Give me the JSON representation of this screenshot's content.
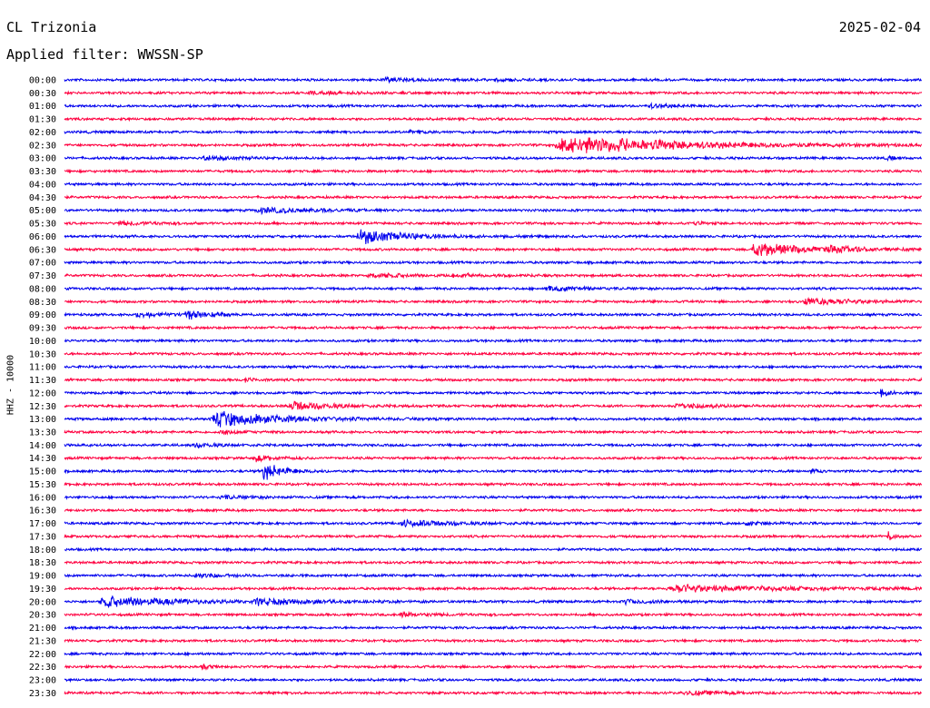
{
  "header": {
    "station": "CL Trizonia",
    "date": "2025-02-04",
    "filter_text": "Applied filter: WWSSN-SP"
  },
  "channel_label": "HHZ - 10000",
  "colors": {
    "blue": "#0000ee",
    "red": "#ff0040"
  },
  "time_labels": [
    "00:00",
    "00:30",
    "01:00",
    "01:30",
    "02:00",
    "02:30",
    "03:00",
    "03:30",
    "04:00",
    "04:30",
    "05:00",
    "05:30",
    "06:00",
    "06:30",
    "07:00",
    "07:30",
    "08:00",
    "08:30",
    "09:00",
    "09:30",
    "10:00",
    "10:30",
    "11:00",
    "11:30",
    "12:00",
    "12:30",
    "13:00",
    "13:30",
    "14:00",
    "14:30",
    "15:00",
    "15:30",
    "16:00",
    "16:30",
    "17:00",
    "17:30",
    "18:00",
    "18:30",
    "19:00",
    "19:30",
    "20:00",
    "20:30",
    "21:00",
    "21:30",
    "22:00",
    "22:30",
    "23:00",
    "23:30"
  ],
  "events": [
    {
      "line": 0,
      "start": 0.37,
      "amp": 0.45,
      "dur": 0.05
    },
    {
      "line": 0,
      "start": 0.5,
      "amp": 0.35,
      "dur": 0.04
    },
    {
      "line": 1,
      "start": 0.28,
      "amp": 0.35,
      "dur": 0.06
    },
    {
      "line": 2,
      "start": 0.68,
      "amp": 0.45,
      "dur": 0.05
    },
    {
      "line": 4,
      "start": 0.4,
      "amp": 0.25,
      "dur": 0.04
    },
    {
      "line": 5,
      "start": 0.57,
      "amp": 2.4,
      "dur": 0.18
    },
    {
      "line": 6,
      "start": 0.16,
      "amp": 0.55,
      "dur": 0.05
    },
    {
      "line": 6,
      "start": 0.96,
      "amp": 0.6,
      "dur": 0.01
    },
    {
      "line": 10,
      "start": 0.22,
      "amp": 0.6,
      "dur": 0.1
    },
    {
      "line": 11,
      "start": 0.06,
      "amp": 0.45,
      "dur": 0.06
    },
    {
      "line": 11,
      "start": 0.73,
      "amp": 0.35,
      "dur": 0.02
    },
    {
      "line": 12,
      "start": 0.34,
      "amp": 1.9,
      "dur": 0.07
    },
    {
      "line": 13,
      "start": 0.8,
      "amp": 1.9,
      "dur": 0.07
    },
    {
      "line": 13,
      "start": 0.89,
      "amp": 0.7,
      "dur": 0.06
    },
    {
      "line": 15,
      "start": 0.35,
      "amp": 0.7,
      "dur": 0.05
    },
    {
      "line": 15,
      "start": 0.45,
      "amp": 0.4,
      "dur": 0.05
    },
    {
      "line": 16,
      "start": 0.56,
      "amp": 0.6,
      "dur": 0.06
    },
    {
      "line": 17,
      "start": 0.86,
      "amp": 0.9,
      "dur": 0.08
    },
    {
      "line": 18,
      "start": 0.08,
      "amp": 0.5,
      "dur": 0.06
    },
    {
      "line": 18,
      "start": 0.14,
      "amp": 1.0,
      "dur": 0.03
    },
    {
      "line": 23,
      "start": 0.21,
      "amp": 0.7,
      "dur": 0.01
    },
    {
      "line": 24,
      "start": 0.95,
      "amp": 0.8,
      "dur": 0.02
    },
    {
      "line": 25,
      "start": 0.26,
      "amp": 1.2,
      "dur": 0.06
    },
    {
      "line": 25,
      "start": 0.71,
      "amp": 0.8,
      "dur": 0.05
    },
    {
      "line": 26,
      "start": 0.17,
      "amp": 2.0,
      "dur": 0.1
    },
    {
      "line": 27,
      "start": 0.18,
      "amp": 0.5,
      "dur": 0.03
    },
    {
      "line": 28,
      "start": 0.15,
      "amp": 0.5,
      "dur": 0.04
    },
    {
      "line": 29,
      "start": 0.22,
      "amp": 0.8,
      "dur": 0.03
    },
    {
      "line": 30,
      "start": 0.23,
      "amp": 2.2,
      "dur": 0.03
    },
    {
      "line": 30,
      "start": 0.87,
      "amp": 0.6,
      "dur": 0.01
    },
    {
      "line": 32,
      "start": 0.18,
      "amp": 0.4,
      "dur": 0.05
    },
    {
      "line": 34,
      "start": 0.39,
      "amp": 0.8,
      "dur": 0.08
    },
    {
      "line": 34,
      "start": 0.79,
      "amp": 0.4,
      "dur": 0.05
    },
    {
      "line": 35,
      "start": 0.96,
      "amp": 1.2,
      "dur": 0.01
    },
    {
      "line": 38,
      "start": 0.15,
      "amp": 0.5,
      "dur": 0.05
    },
    {
      "line": 39,
      "start": 0.7,
      "amp": 0.9,
      "dur": 0.18
    },
    {
      "line": 40,
      "start": 0.04,
      "amp": 1.5,
      "dur": 0.1
    },
    {
      "line": 40,
      "start": 0.22,
      "amp": 0.8,
      "dur": 0.08
    },
    {
      "line": 40,
      "start": 0.65,
      "amp": 0.5,
      "dur": 0.05
    },
    {
      "line": 41,
      "start": 0.39,
      "amp": 0.4,
      "dur": 0.06
    },
    {
      "line": 45,
      "start": 0.16,
      "amp": 0.6,
      "dur": 0.01
    },
    {
      "line": 47,
      "start": 0.72,
      "amp": 0.5,
      "dur": 0.06
    }
  ]
}
